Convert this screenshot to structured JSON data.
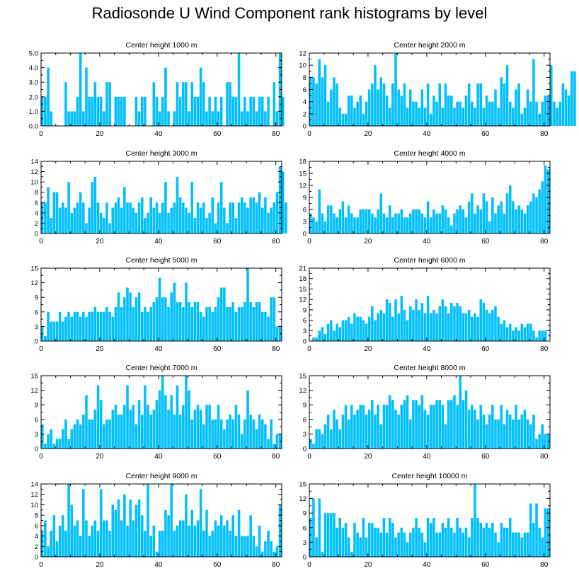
{
  "figure": {
    "title": "Radiosonde U Wind Component rank histograms by level",
    "bar_color": "#00bfff",
    "bar_edge_color": "#ffffff",
    "axis_color": "#000000"
  },
  "chart_data": [
    {
      "type": "bar",
      "title": "Center height 1000 m",
      "xlim": [
        0,
        82
      ],
      "ylim": [
        0,
        5
      ],
      "xticks": [
        "0",
        "20",
        "40",
        "60",
        "80"
      ],
      "yticks": [
        "0.0",
        "1.0",
        "2.0",
        "3.0",
        "4.0",
        "5.0"
      ],
      "values": [
        2,
        2,
        4,
        1,
        0,
        0,
        0,
        0,
        3,
        1,
        1,
        1,
        2,
        5,
        1,
        4,
        2,
        2,
        3,
        2,
        2,
        1,
        3,
        3,
        0,
        2,
        2,
        2,
        2,
        0,
        0,
        0,
        2,
        1,
        2,
        2,
        0,
        0,
        3,
        2,
        1,
        2,
        4,
        1,
        0,
        1,
        3,
        2,
        3,
        3,
        1,
        3,
        2,
        2,
        4,
        3,
        1,
        2,
        1,
        2,
        1,
        2,
        0,
        3,
        3,
        2,
        2,
        5,
        1,
        2,
        1,
        2,
        2,
        1,
        2,
        2,
        1,
        2,
        0,
        3,
        1,
        5,
        2
      ],
      "axis_side": "left"
    },
    {
      "type": "bar",
      "title": "Center height 2000 m",
      "xlim": [
        0,
        82
      ],
      "ylim": [
        0,
        12
      ],
      "xticks": [
        "0",
        "20",
        "40",
        "60",
        "80"
      ],
      "yticks": [
        "0",
        "2",
        "4",
        "6",
        "8",
        "10",
        "12"
      ],
      "values": [
        8,
        8,
        7,
        11,
        8,
        10,
        4,
        6,
        8,
        7,
        3,
        2,
        2,
        5,
        5,
        3,
        4,
        5,
        2,
        4,
        6,
        7,
        10,
        6,
        8,
        7,
        5,
        3,
        7,
        12,
        6,
        5,
        7,
        3,
        6,
        4,
        4,
        3,
        6,
        3,
        7,
        2,
        5,
        4,
        7,
        3,
        7,
        5,
        5,
        3,
        4,
        4,
        3,
        5,
        7,
        4,
        3,
        7,
        7,
        3,
        5,
        4,
        4,
        6,
        3,
        8,
        7,
        10,
        4,
        3,
        6,
        7,
        2,
        3,
        6,
        4,
        11,
        4,
        2,
        4,
        5,
        5,
        10,
        4,
        3,
        4,
        7,
        6,
        5,
        9,
        9
      ],
      "axis_side": "right"
    },
    {
      "type": "bar",
      "title": "Center height 3000 m",
      "xlim": [
        0,
        82
      ],
      "ylim": [
        0,
        14
      ],
      "xticks": [
        "0",
        "20",
        "40",
        "60",
        "80"
      ],
      "yticks": [
        "0",
        "2",
        "4",
        "6",
        "8",
        "10",
        "12",
        "14"
      ],
      "values": [
        6,
        6,
        9,
        3,
        8,
        8,
        5,
        6,
        5,
        10,
        4,
        5,
        6,
        8,
        6,
        2,
        5,
        10,
        11,
        6,
        4,
        3,
        6,
        2,
        5,
        6,
        7,
        5,
        9,
        6,
        6,
        5,
        4,
        6,
        7,
        3,
        4,
        7,
        5,
        6,
        4,
        6,
        10,
        4,
        5,
        6,
        11,
        7,
        6,
        5,
        4,
        10,
        3,
        6,
        5,
        6,
        3,
        4,
        7,
        2,
        6,
        10,
        5,
        2,
        6,
        6,
        3,
        6,
        7,
        6,
        5,
        7,
        7,
        6,
        8,
        5,
        7,
        4,
        5,
        6,
        8,
        13,
        12,
        6
      ],
      "axis_side": "left"
    },
    {
      "type": "bar",
      "title": "Center height 4000 m",
      "xlim": [
        0,
        82
      ],
      "ylim": [
        0,
        18
      ],
      "xticks": [
        "0",
        "20",
        "40",
        "60",
        "80"
      ],
      "yticks": [
        "0",
        "3",
        "6",
        "9",
        "12",
        "15",
        "18"
      ],
      "values": [
        5,
        4,
        3,
        11,
        5,
        3,
        7,
        7,
        5,
        4,
        6,
        8,
        4,
        7,
        5,
        4,
        4,
        6,
        6,
        6,
        6,
        5,
        4,
        6,
        10,
        5,
        4,
        7,
        4,
        5,
        5,
        6,
        4,
        4,
        5,
        6,
        6,
        6,
        5,
        4,
        8,
        4,
        6,
        5,
        5,
        7,
        6,
        4,
        2,
        5,
        6,
        7,
        6,
        4,
        8,
        10,
        5,
        7,
        6,
        10,
        8,
        3,
        9,
        5,
        7,
        8,
        5,
        10,
        12,
        8,
        6,
        7,
        6,
        5,
        7,
        8,
        10,
        9,
        11,
        13,
        17,
        16
      ],
      "axis_side": "right"
    },
    {
      "type": "bar",
      "title": "Center height 5000 m",
      "xlim": [
        0,
        82
      ],
      "ylim": [
        0,
        15
      ],
      "xticks": [
        "0",
        "20",
        "40",
        "60",
        "80"
      ],
      "yticks": [
        "0",
        "3",
        "6",
        "9",
        "12",
        "15"
      ],
      "values": [
        3,
        1,
        6,
        4,
        4,
        4,
        6,
        4,
        5,
        6,
        5,
        6,
        6,
        5,
        6,
        5,
        6,
        6,
        7,
        6,
        6,
        6,
        7,
        6,
        5,
        7,
        10,
        7,
        9,
        11,
        10,
        7,
        9,
        10,
        6,
        7,
        6,
        7,
        8,
        9,
        13,
        9,
        9,
        7,
        10,
        12,
        8,
        8,
        7,
        12,
        8,
        7,
        8,
        8,
        6,
        5,
        7,
        7,
        6,
        7,
        9,
        11,
        11,
        7,
        7,
        8,
        6,
        7,
        7,
        8,
        15,
        8,
        7,
        8,
        8,
        6,
        6,
        5,
        9,
        9,
        3,
        3
      ],
      "axis_side": "left"
    },
    {
      "type": "bar",
      "title": "Center height 6000 m",
      "xlim": [
        0,
        82
      ],
      "ylim": [
        0,
        21
      ],
      "xticks": [
        "0",
        "20",
        "40",
        "60",
        "80"
      ],
      "yticks": [
        "0",
        "3",
        "6",
        "9",
        "12",
        "15",
        "18",
        "21"
      ],
      "values": [
        0,
        1,
        1,
        3,
        4,
        2,
        5,
        6,
        3,
        5,
        4,
        6,
        6,
        7,
        5,
        8,
        7,
        7,
        6,
        5,
        7,
        10,
        6,
        8,
        9,
        8,
        12,
        11,
        7,
        12,
        8,
        13,
        9,
        6,
        10,
        9,
        12,
        9,
        11,
        8,
        13,
        8,
        9,
        8,
        10,
        12,
        10,
        8,
        11,
        10,
        11,
        10,
        8,
        8,
        9,
        7,
        8,
        7,
        12,
        11,
        9,
        8,
        9,
        10,
        7,
        5,
        6,
        4,
        5,
        3,
        4,
        3,
        5,
        4,
        5,
        5,
        3,
        1,
        3,
        3,
        3
      ],
      "axis_side": "right"
    },
    {
      "type": "bar",
      "title": "Center height 7000 m",
      "xlim": [
        0,
        82
      ],
      "ylim": [
        0,
        15
      ],
      "xticks": [
        "0",
        "20",
        "40",
        "60",
        "80"
      ],
      "yticks": [
        "0",
        "3",
        "6",
        "9",
        "12",
        "15"
      ],
      "values": [
        5,
        1,
        3,
        4,
        1,
        2,
        2,
        4,
        6,
        2,
        4,
        5,
        6,
        5,
        7,
        11,
        6,
        6,
        8,
        13,
        10,
        5,
        6,
        6,
        8,
        9,
        7,
        7,
        9,
        13,
        8,
        9,
        5,
        10,
        7,
        13,
        9,
        7,
        8,
        10,
        12,
        15,
        11,
        8,
        11,
        7,
        13,
        7,
        9,
        15,
        12,
        6,
        8,
        9,
        8,
        5,
        9,
        9,
        6,
        6,
        9,
        6,
        4,
        6,
        7,
        6,
        9,
        7,
        3,
        6,
        12,
        7,
        6,
        4,
        7,
        6,
        5,
        2,
        6,
        1,
        3,
        3
      ],
      "axis_side": "left"
    },
    {
      "type": "bar",
      "title": "Center height 8000 m",
      "xlim": [
        0,
        82
      ],
      "ylim": [
        0,
        15
      ],
      "xticks": [
        "0",
        "20",
        "40",
        "60",
        "80"
      ],
      "yticks": [
        "0",
        "3",
        "6",
        "9",
        "12",
        "15"
      ],
      "values": [
        2,
        1,
        4,
        4,
        3,
        5,
        7,
        4,
        8,
        6,
        4,
        7,
        9,
        6,
        9,
        7,
        8,
        9,
        9,
        7,
        8,
        10,
        7,
        9,
        5,
        9,
        9,
        11,
        10,
        8,
        7,
        9,
        10,
        11,
        6,
        10,
        10,
        9,
        11,
        8,
        7,
        9,
        9,
        10,
        10,
        9,
        5,
        10,
        10,
        11,
        9,
        15,
        10,
        12,
        8,
        9,
        8,
        6,
        9,
        7,
        5,
        7,
        9,
        6,
        6,
        9,
        5,
        8,
        7,
        6,
        9,
        6,
        7,
        8,
        6,
        5,
        7,
        2,
        3,
        5,
        3,
        3
      ],
      "axis_side": "right"
    },
    {
      "type": "bar",
      "title": "Center height 9000 m",
      "xlim": [
        0,
        82
      ],
      "ylim": [
        0,
        14
      ],
      "xticks": [
        "0",
        "20",
        "40",
        "60",
        "80"
      ],
      "yticks": [
        "0",
        "2",
        "4",
        "6",
        "8",
        "10",
        "12",
        "14"
      ],
      "values": [
        5,
        7,
        2,
        5,
        8,
        3,
        6,
        8,
        5,
        14,
        10,
        6,
        7,
        4,
        13,
        7,
        4,
        6,
        7,
        5,
        13,
        7,
        7,
        5,
        10,
        9,
        11,
        7,
        12,
        6,
        11,
        7,
        10,
        11,
        8,
        5,
        14,
        4,
        6,
        1,
        5,
        5,
        9,
        8,
        14,
        5,
        6,
        7,
        7,
        12,
        6,
        9,
        6,
        7,
        13,
        5,
        9,
        4,
        5,
        7,
        6,
        8,
        6,
        7,
        5,
        8,
        4,
        9,
        4,
        4,
        4,
        8,
        4,
        2,
        6,
        1,
        3,
        5,
        3,
        1,
        2,
        10
      ],
      "axis_side": "left"
    },
    {
      "type": "bar",
      "title": "Center height 10000 m",
      "xlim": [
        0,
        82
      ],
      "ylim": [
        0,
        15
      ],
      "xticks": [
        "0",
        "20",
        "40",
        "60",
        "80"
      ],
      "yticks": [
        "0",
        "3",
        "6",
        "9",
        "12",
        "15"
      ],
      "values": [
        8,
        12,
        4,
        12,
        1,
        9,
        9,
        9,
        9,
        6,
        8,
        6,
        7,
        4,
        1,
        7,
        5,
        4,
        8,
        4,
        7,
        7,
        6,
        6,
        5,
        8,
        5,
        8,
        7,
        4,
        5,
        6,
        5,
        3,
        5,
        6,
        8,
        6,
        5,
        3,
        8,
        7,
        8,
        5,
        5,
        7,
        6,
        8,
        6,
        5,
        8,
        6,
        5,
        6,
        4,
        8,
        15,
        8,
        7,
        6,
        7,
        6,
        7,
        5,
        3,
        7,
        6,
        6,
        8,
        5,
        5,
        5,
        4,
        5,
        5,
        11,
        7,
        11,
        6,
        4,
        10,
        10
      ],
      "axis_side": "right"
    }
  ]
}
